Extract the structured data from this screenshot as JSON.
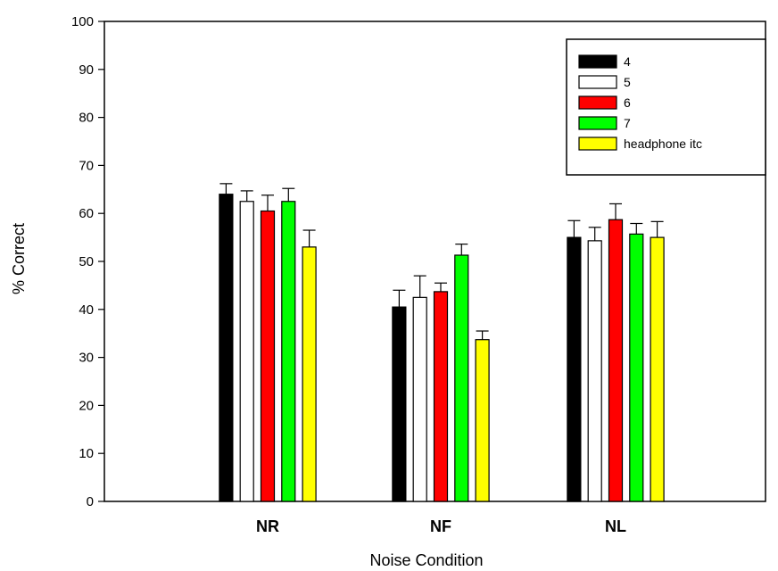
{
  "chart_data": {
    "type": "bar",
    "xlabel": "Noise Condition",
    "ylabel": "% Correct",
    "ylim": [
      0,
      100
    ],
    "yticks": [
      0,
      10,
      20,
      30,
      40,
      50,
      60,
      70,
      80,
      90,
      100
    ],
    "categories": [
      "NR",
      "NF",
      "NL"
    ],
    "series": [
      {
        "name": "4",
        "color": "#000000",
        "values": [
          64,
          40.5,
          55
        ],
        "errors": [
          2.2,
          3.5,
          3.5
        ]
      },
      {
        "name": "5",
        "color": "#ffffff",
        "values": [
          62.5,
          42.5,
          54.3
        ],
        "errors": [
          2.2,
          4.5,
          2.8
        ]
      },
      {
        "name": "6",
        "color": "#ff0000",
        "values": [
          60.5,
          43.7,
          58.7
        ],
        "errors": [
          3.3,
          1.8,
          3.3
        ]
      },
      {
        "name": "7",
        "color": "#00ff00",
        "values": [
          62.5,
          51.3,
          55.7
        ],
        "errors": [
          2.7,
          2.3,
          2.2
        ]
      },
      {
        "name": "headphone itc",
        "color": "#ffff00",
        "values": [
          53,
          33.7,
          55
        ],
        "errors": [
          3.5,
          1.8,
          3.3
        ]
      }
    ],
    "error_bars": "upper",
    "legend_position": "top-right",
    "grid": false
  }
}
